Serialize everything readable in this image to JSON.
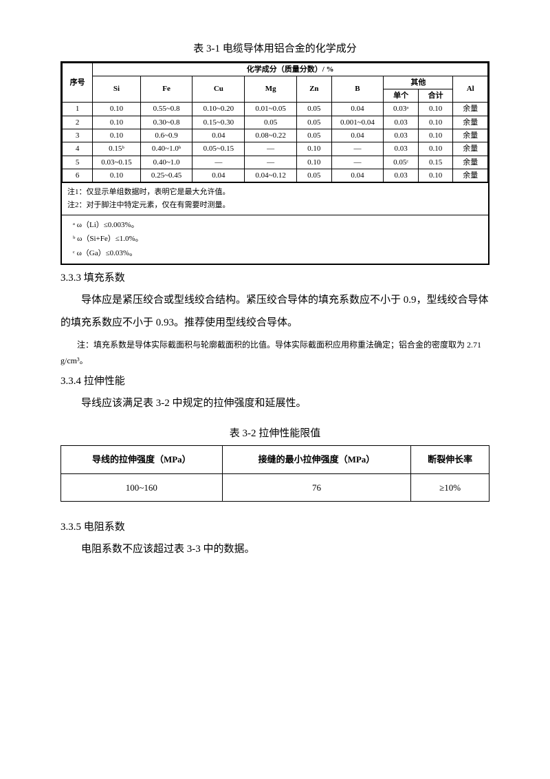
{
  "table1": {
    "title": "表 3-1 电缆导体用铝合金的化学成分",
    "header_top": "化学成分（质量分数）/ %",
    "header_seq": "序号",
    "cols": [
      "Si",
      "Fe",
      "Cu",
      "Mg",
      "Zn",
      "B"
    ],
    "other_label": "其他",
    "other_sub1": "单个",
    "other_sub2": "合计",
    "al_label": "Al",
    "rows": [
      {
        "n": "1",
        "si": "0.10",
        "fe": "0.55~0.8",
        "cu": "0.10~0.20",
        "mg": "0.01~0.05",
        "zn": "0.05",
        "b": "0.04",
        "o1": "0.03ᵃ",
        "o2": "0.10",
        "al": "余量"
      },
      {
        "n": "2",
        "si": "0.10",
        "fe": "0.30~0.8",
        "cu": "0.15~0.30",
        "mg": "0.05",
        "zn": "0.05",
        "b": "0.001~0.04",
        "o1": "0.03",
        "o2": "0.10",
        "al": "余量"
      },
      {
        "n": "3",
        "si": "0.10",
        "fe": "0.6~0.9",
        "cu": "0.04",
        "mg": "0.08~0.22",
        "zn": "0.05",
        "b": "0.04",
        "o1": "0.03",
        "o2": "0.10",
        "al": "余量"
      },
      {
        "n": "4",
        "si": "0.15ᵇ",
        "fe": "0.40~1.0ᵇ",
        "cu": "0.05~0.15",
        "mg": "—",
        "zn": "0.10",
        "b": "—",
        "o1": "0.03",
        "o2": "0.10",
        "al": "余量"
      },
      {
        "n": "5",
        "si": "0.03~0.15",
        "fe": "0.40~1.0",
        "cu": "—",
        "mg": "—",
        "zn": "0.10",
        "b": "—",
        "o1": "0.05ᶜ",
        "o2": "0.15",
        "al": "余量"
      },
      {
        "n": "6",
        "si": "0.10",
        "fe": "0.25~0.45",
        "cu": "0.04",
        "mg": "0.04~0.12",
        "zn": "0.05",
        "b": "0.04",
        "o1": "0.03",
        "o2": "0.10",
        "al": "余量"
      }
    ],
    "note1": "注1：仅显示单组数据时，表明它是最大允许值。",
    "note2": "注2：对于脚注中特定元素，仅在有需要时测量。",
    "fn_a": "ᵃ ω（Li）≤0.003%。",
    "fn_b": "ᵇ ω（Si+Fe）≤1.0%。",
    "fn_c": "ᶜ ω（Ga）≤0.03%。"
  },
  "sec333": {
    "head": "3.3.3 填充系数",
    "p1": "导体应是紧压绞合或型线绞合结构。紧压绞合导体的填充系数应不小于 0.9，型线绞合导体的填充系数应不小于 0.93。推荐使用型线绞合导体。",
    "note": "注：填充系数是导体实际截面积与轮廓截面积的比值。导体实际截面积应用称重法确定；铝合金的密度取为 2.71 g/cm³。"
  },
  "sec334": {
    "head": "3.3.4 拉伸性能",
    "p1": "导线应该满足表 3-2 中规定的拉伸强度和延展性。"
  },
  "table2": {
    "title": "表 3-2 拉伸性能限值",
    "h1": "导线的拉伸强度（MPa）",
    "h2": "接缝的最小拉伸强度（MPa）",
    "h3": "断裂伸长率",
    "v1": "100~160",
    "v2": "76",
    "v3": "≥10%"
  },
  "sec335": {
    "head": "3.3.5 电阻系数",
    "p1": "电阻系数不应该超过表 3-3 中的数据。"
  }
}
